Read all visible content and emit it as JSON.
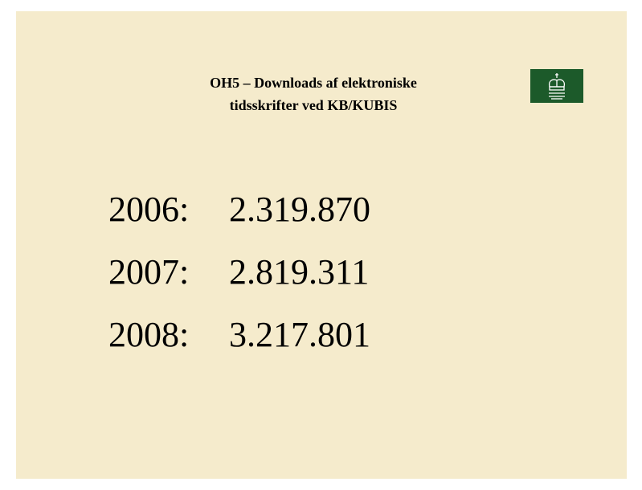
{
  "title": {
    "lines": [
      "OH5 – Downloads af elektroniske",
      "tidsskrifter ved KB/KUBIS"
    ]
  },
  "rows": [
    {
      "year": "2006:",
      "value": "2.319.870"
    },
    {
      "year": "2007:",
      "value": "2.819.311"
    },
    {
      "year": "2008:",
      "value": "3.217.801"
    }
  ]
}
